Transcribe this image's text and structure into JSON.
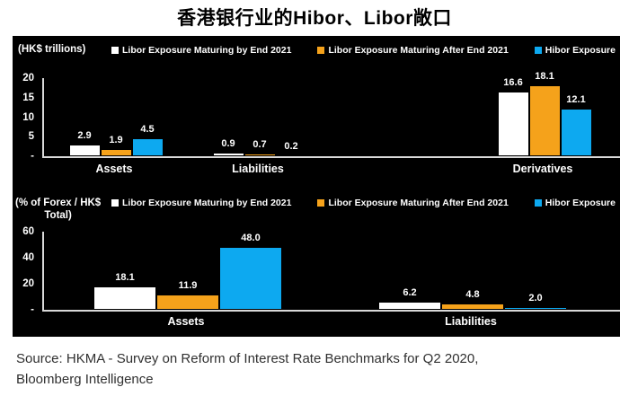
{
  "title": "香港银行业的Hibor、Libor敞口",
  "source_line1": "Source: HKMA - Survey on Reform of Interest Rate Benchmarks for Q2 2020,",
  "source_line2": "Bloomberg Intelligence",
  "colors": {
    "panel_background": "#000000",
    "libor_by_end_2021": "#FFFFFF",
    "libor_after_end_2021": "#F5A21B",
    "hibor": "#0DA9F0",
    "axis_line": "#D9D9D9",
    "chart_text": "#FFFFFF"
  },
  "legend": {
    "items": [
      {
        "label": "Libor Exposure Maturing by End 2021",
        "color": "#FFFFFF"
      },
      {
        "label": "Libor Exposure Maturing After End 2021",
        "color": "#F5A21B"
      },
      {
        "label": "Hibor Exposure",
        "color": "#0DA9F0"
      }
    ]
  },
  "chart_data": [
    {
      "type": "bar",
      "ylabel_lines": [
        "(HK$ trillions)"
      ],
      "categories": [
        "Assets",
        "Liabilities",
        "Derivatives"
      ],
      "series": [
        {
          "name": "Libor Exposure Maturing by End 2021",
          "color": "#FFFFFF",
          "values": [
            2.9,
            0.9,
            16.6
          ]
        },
        {
          "name": "Libor Exposure Maturing After End 2021",
          "color": "#F5A21B",
          "values": [
            1.9,
            0.7,
            18.1
          ]
        },
        {
          "name": "Hibor Exposure",
          "color": "#0DA9F0",
          "values": [
            4.5,
            0.2,
            12.1
          ]
        }
      ],
      "ylim": [
        0,
        20
      ],
      "yticks": [
        "20",
        "15",
        "10",
        "5",
        "-"
      ],
      "ytick_values": [
        20,
        15,
        10,
        5,
        0
      ],
      "legend_position": "top",
      "grid": false
    },
    {
      "type": "bar",
      "ylabel_lines": [
        "(% of Forex / HK$",
        "Total)"
      ],
      "categories": [
        "Assets",
        "Liabilities"
      ],
      "series": [
        {
          "name": "Libor Exposure Maturing by End 2021",
          "color": "#FFFFFF",
          "values": [
            18.1,
            6.2
          ]
        },
        {
          "name": "Libor Exposure Maturing After End 2021",
          "color": "#F5A21B",
          "values": [
            11.9,
            4.8
          ]
        },
        {
          "name": "Hibor Exposure",
          "color": "#0DA9F0",
          "values": [
            48.0,
            2.0
          ]
        }
      ],
      "ylim": [
        0,
        60
      ],
      "yticks": [
        "60",
        "40",
        "20",
        "-"
      ],
      "ytick_values": [
        60,
        40,
        20,
        0
      ],
      "legend_position": "top",
      "grid": false
    }
  ]
}
